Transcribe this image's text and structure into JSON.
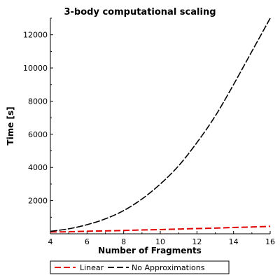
{
  "chart_data": {
    "type": "line",
    "title": "3-body computational scaling",
    "xlabel": "Number of Fragments",
    "ylabel": "Time [s]",
    "xlim": [
      4,
      16
    ],
    "ylim": [
      0,
      13000
    ],
    "x_ticks": [
      4,
      6,
      8,
      10,
      12,
      14,
      16
    ],
    "y_ticks": [
      2000,
      4000,
      6000,
      8000,
      10000,
      12000
    ],
    "grid": false,
    "legend_position": "bottom",
    "series": [
      {
        "name": "Linear",
        "color": "#e00000",
        "dash": "dashed",
        "x": [
          4,
          5,
          6,
          7,
          8,
          9,
          10,
          11,
          12,
          13,
          14,
          15,
          16
        ],
        "y": [
          110,
          125,
          155,
          175,
          200,
          230,
          255,
          285,
          315,
          345,
          380,
          410,
          450
        ]
      },
      {
        "name": "No Approximations",
        "color": "#000000",
        "dash": "dashed",
        "x": [
          4,
          5,
          6,
          7,
          8,
          9,
          10,
          11,
          12,
          13,
          14,
          15,
          16
        ],
        "y": [
          150,
          300,
          550,
          900,
          1400,
          2100,
          3000,
          4100,
          5500,
          7100,
          9000,
          11000,
          13000
        ]
      }
    ]
  }
}
